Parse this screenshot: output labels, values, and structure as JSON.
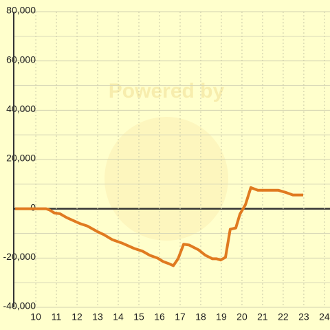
{
  "chart_data": {
    "type": "line",
    "watermark": "Powered by",
    "x": [
      9,
      10.5,
      10.67,
      10.9,
      11.17,
      11.5,
      12.17,
      12.5,
      12.97,
      13.3,
      13.7,
      14.17,
      14.77,
      15.17,
      15.53,
      15.9,
      16.17,
      16.43,
      16.67,
      16.9,
      17.17,
      17.43,
      17.9,
      18.23,
      18.57,
      18.77,
      18.97,
      19.2,
      19.43,
      19.7,
      19.9,
      20.17,
      20.43,
      20.77,
      21.77,
      22.1,
      22.47,
      22.97
    ],
    "series": [
      {
        "color": "#e07a20",
        "values": [
          0,
          0,
          -500,
          -1700,
          -2000,
          -3600,
          -6100,
          -7000,
          -9200,
          -10500,
          -12500,
          -13900,
          -16100,
          -17200,
          -18900,
          -20000,
          -21400,
          -22200,
          -23100,
          -20300,
          -14400,
          -14700,
          -16700,
          -18900,
          -20300,
          -20300,
          -20800,
          -19700,
          -8300,
          -7800,
          -2200,
          1700,
          8600,
          7500,
          7500,
          6700,
          5600,
          5600
        ]
      }
    ],
    "xlim": [
      8.93,
      24.27
    ],
    "xticks": [
      10,
      11,
      12,
      13,
      14,
      15,
      16,
      17,
      18,
      19,
      20,
      21,
      22,
      23,
      24
    ],
    "ylim": [
      -40000,
      80000
    ],
    "yticks": [
      {
        "value": -40000,
        "label": "-40,000"
      },
      {
        "value": -20000,
        "label": "-20,000"
      },
      0,
      {
        "value": 20000,
        "label": "20,000"
      },
      {
        "value": 40000,
        "label": "40,000"
      },
      {
        "value": 60000,
        "label": "60,000"
      },
      {
        "value": 80000,
        "label": "80,000"
      }
    ],
    "grid": true
  }
}
